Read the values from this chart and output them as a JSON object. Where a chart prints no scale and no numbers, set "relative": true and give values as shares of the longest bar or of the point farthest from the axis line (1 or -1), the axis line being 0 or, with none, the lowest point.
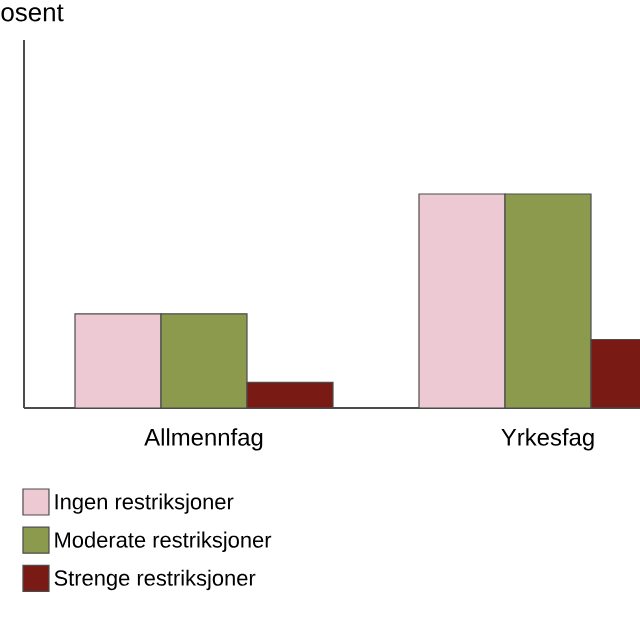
{
  "chart_data": {
    "type": "bar",
    "annotations": [
      "osent"
    ],
    "relative": true,
    "categories": [
      "Allmennfag",
      "Yrkesfag"
    ],
    "series": [
      {
        "name": "Ingen restriksjoner",
        "color": "#edc9d3",
        "values": [
          0.44,
          1
        ]
      },
      {
        "name": "Moderate restriksjoner",
        "color": "#8c9a4e",
        "values": [
          0.44,
          1
        ]
      },
      {
        "name": "Strenge restriksjoner",
        "color": "#7a1a14",
        "values": [
          0.12,
          0.32
        ]
      }
    ],
    "legend": "bottom"
  }
}
